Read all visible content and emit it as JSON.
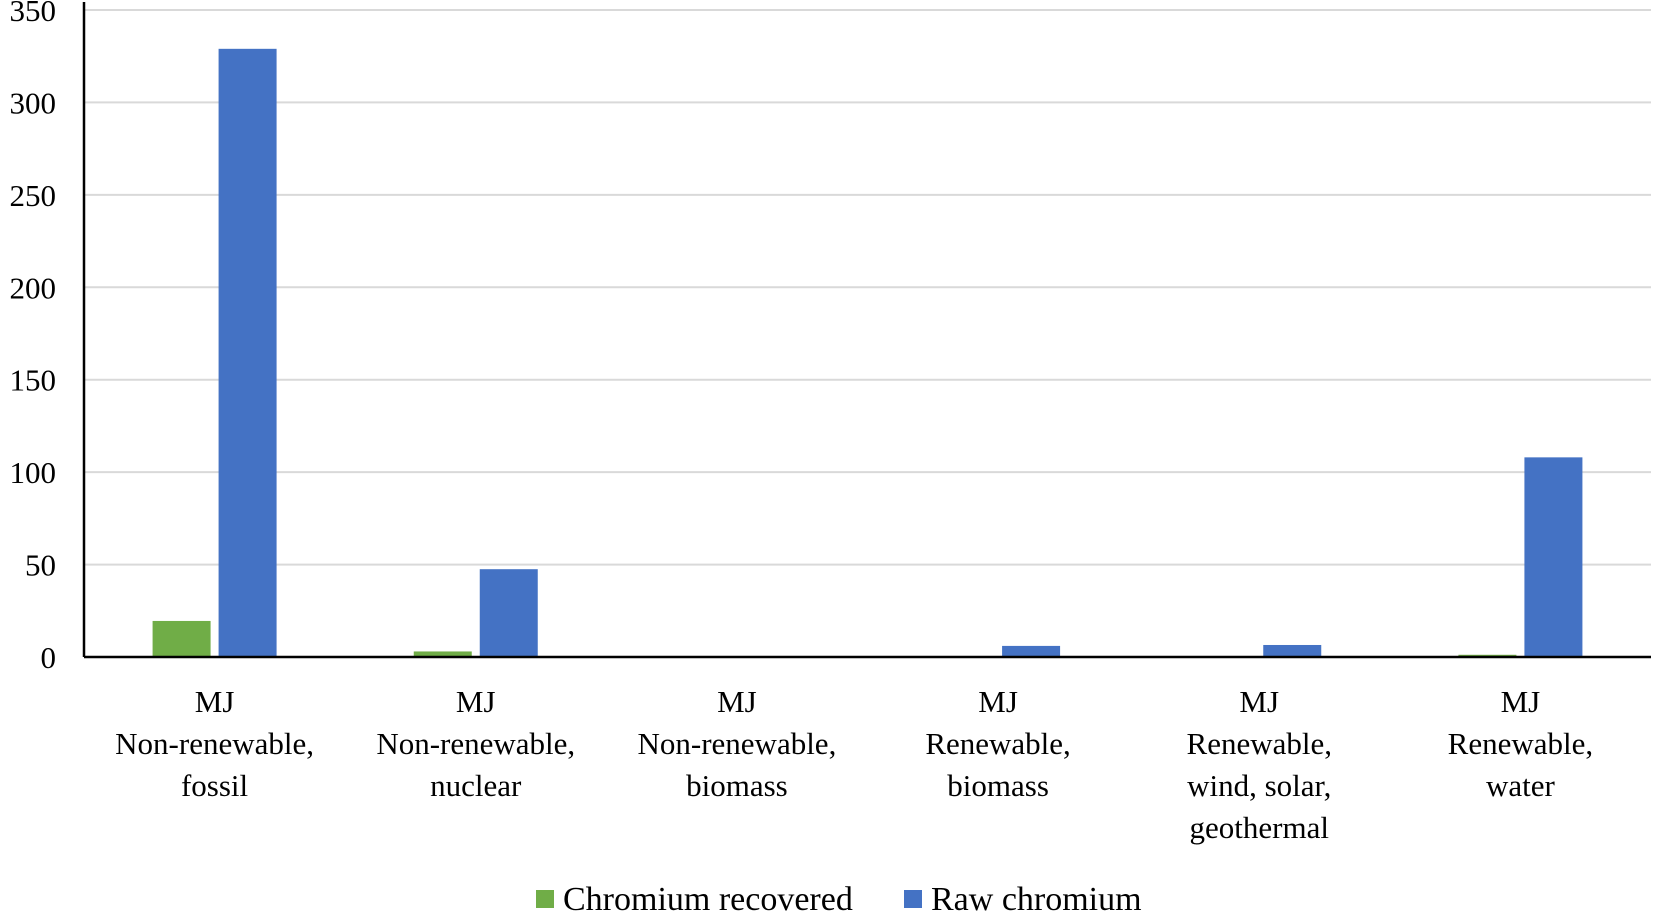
{
  "chart_data": {
    "type": "bar",
    "categories": [
      [
        "MJ",
        "Non-renewable,",
        "fossil"
      ],
      [
        "MJ",
        "Non-renewable,",
        "nuclear"
      ],
      [
        "MJ",
        "Non-renewable,",
        "biomass"
      ],
      [
        "MJ",
        "Renewable,",
        "biomass"
      ],
      [
        "MJ",
        "Renewable,",
        "wind, solar,",
        "geothermal"
      ],
      [
        "MJ",
        "Renewable,",
        "water"
      ]
    ],
    "series": [
      {
        "name": "Chromium recovered",
        "color": "#70ad47",
        "values": [
          19.5,
          3.0,
          0.2,
          0.4,
          0.3,
          1.2
        ]
      },
      {
        "name": "Raw chromium",
        "color": "#4472c4",
        "values": [
          329,
          47.5,
          0.5,
          6.0,
          6.5,
          108
        ]
      }
    ],
    "ylim": [
      0,
      350
    ],
    "yticks": [
      0,
      50,
      100,
      150,
      200,
      250,
      300,
      350
    ],
    "grid": true,
    "legend": "bottom-center",
    "title": "",
    "xlabel": "",
    "ylabel": ""
  }
}
